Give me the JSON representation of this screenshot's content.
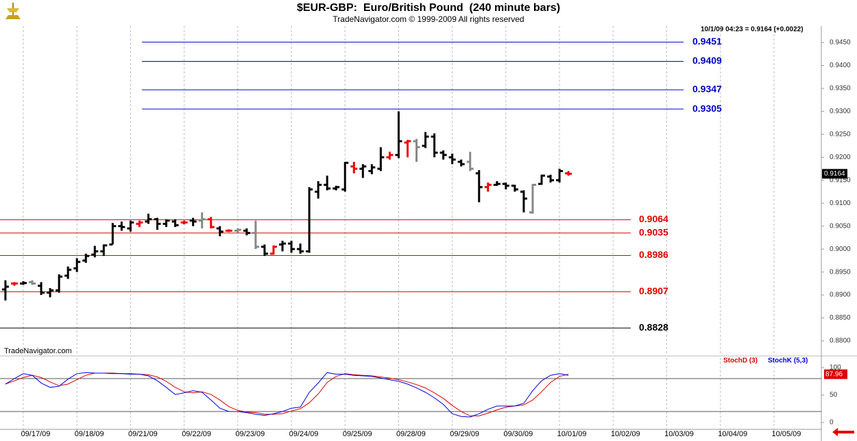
{
  "chart_data": [
    {
      "type": "ohlc",
      "title": "$EUR-GBP:  Euro/British Pound  (240 minute bars)",
      "subtitle": "TradeNavigator.com © 1999-2009 All rights reserved",
      "info": "10/1/09 04:23 = 0.9164 (+0.0022)",
      "watermark": "TradeNavigator.com",
      "xlim": [
        -10.43,
        357.2
      ],
      "xticks": [
        {
          "value": 0,
          "label": "09/17/09"
        },
        {
          "value": 24,
          "label": "09/18/09"
        },
        {
          "value": 48,
          "label": "09/21/09"
        },
        {
          "value": 72,
          "label": "09/22/09"
        },
        {
          "value": 96,
          "label": "09/23/09"
        },
        {
          "value": 120,
          "label": "09/24/09"
        },
        {
          "value": 144,
          "label": "09/25/09"
        },
        {
          "value": 168,
          "label": "09/28/09"
        },
        {
          "value": 192,
          "label": "09/29/09"
        },
        {
          "value": 216,
          "label": "09/30/09"
        },
        {
          "value": 240,
          "label": "10/01/09"
        },
        {
          "value": 264,
          "label": "10/02/09"
        },
        {
          "value": 288,
          "label": "10/03/09"
        },
        {
          "value": 312,
          "label": "10/04/09"
        },
        {
          "value": 336,
          "label": "10/05/09"
        }
      ],
      "ylim": [
        0.87701,
        0.94859
      ],
      "yticks": [
        {
          "value": 0.945,
          "label": "0.9450"
        },
        {
          "value": 0.94,
          "label": "0.9400"
        },
        {
          "value": 0.935,
          "label": "0.9350"
        },
        {
          "value": 0.93,
          "label": "0.9300"
        },
        {
          "value": 0.925,
          "label": "0.9250"
        },
        {
          "value": 0.92,
          "label": "0.9200"
        },
        {
          "value": 0.915,
          "label": "0.9150"
        },
        {
          "value": 0.91,
          "label": "0.9100"
        },
        {
          "value": 0.905,
          "label": "0.9050"
        },
        {
          "value": 0.9,
          "label": "0.9000"
        },
        {
          "value": 0.895,
          "label": "0.8950"
        },
        {
          "value": 0.89,
          "label": "0.8900"
        },
        {
          "value": 0.885,
          "label": "0.8850"
        },
        {
          "value": 0.88,
          "label": "0.8800"
        }
      ],
      "x": [
        -8,
        -4,
        0,
        4,
        8,
        12,
        16,
        20,
        24,
        28,
        32,
        36,
        40,
        44,
        48,
        52,
        56,
        60,
        64,
        68,
        72,
        76,
        80,
        84,
        88,
        92,
        96,
        100,
        104,
        108,
        112,
        116,
        120,
        124,
        128,
        132,
        136,
        140,
        144,
        148,
        152,
        156,
        160,
        164,
        168,
        172,
        176,
        180,
        184,
        188,
        192,
        196,
        200,
        204,
        208,
        212,
        216,
        220,
        224,
        228,
        232,
        236,
        240,
        244
      ],
      "open": [
        0.8912,
        0.8925,
        0.8925,
        0.8928,
        0.892,
        0.8905,
        0.891,
        0.8942,
        0.8958,
        0.8975,
        0.8988,
        0.8995,
        0.901,
        0.905,
        0.9045,
        0.9055,
        0.906,
        0.9065,
        0.9055,
        0.906,
        0.9058,
        0.9062,
        0.9062,
        0.9065,
        0.9045,
        0.904,
        0.904,
        0.904,
        0.9035,
        0.9005,
        0.899,
        0.901,
        0.9012,
        0.9,
        0.8995,
        0.9125,
        0.914,
        0.9132,
        0.913,
        0.918,
        0.9175,
        0.917,
        0.9175,
        0.92,
        0.9205,
        0.9232,
        0.9235,
        0.9225,
        0.9245,
        0.921,
        0.92,
        0.919,
        0.919,
        0.9165,
        0.9135,
        0.914,
        0.9142,
        0.9138,
        0.9125,
        0.908,
        0.9142,
        0.9158,
        0.915,
        0.9165
      ],
      "high": [
        0.8932,
        0.8928,
        0.893,
        0.8932,
        0.8928,
        0.8915,
        0.8945,
        0.8962,
        0.898,
        0.899,
        0.9007,
        0.901,
        0.9057,
        0.906,
        0.9062,
        0.9062,
        0.9077,
        0.9068,
        0.9065,
        0.9065,
        0.9062,
        0.9068,
        0.908,
        0.907,
        0.905,
        0.9043,
        0.9045,
        0.9045,
        0.9062,
        0.901,
        0.9008,
        0.9018,
        0.9018,
        0.9012,
        0.9135,
        0.9148,
        0.916,
        0.9138,
        0.919,
        0.919,
        0.9185,
        0.9185,
        0.9222,
        0.9212,
        0.93,
        0.9238,
        0.924,
        0.9255,
        0.9252,
        0.9215,
        0.9208,
        0.9195,
        0.9212,
        0.9172,
        0.9145,
        0.9148,
        0.9145,
        0.914,
        0.9128,
        0.9142,
        0.9162,
        0.9162,
        0.9175,
        0.917
      ],
      "low": [
        0.8888,
        0.892,
        0.8922,
        0.8922,
        0.89,
        0.8895,
        0.8905,
        0.8935,
        0.895,
        0.897,
        0.8982,
        0.8985,
        0.901,
        0.904,
        0.9038,
        0.9048,
        0.9055,
        0.9042,
        0.9048,
        0.9048,
        0.9054,
        0.905,
        0.9045,
        0.9045,
        0.9028,
        0.9037,
        0.9035,
        0.903,
        0.9,
        0.8985,
        0.8988,
        0.8995,
        0.8992,
        0.899,
        0.8992,
        0.911,
        0.9128,
        0.9128,
        0.9125,
        0.9165,
        0.9155,
        0.9163,
        0.917,
        0.9195,
        0.9198,
        0.92,
        0.919,
        0.922,
        0.92,
        0.9195,
        0.9185,
        0.918,
        0.917,
        0.9102,
        0.9125,
        0.9138,
        0.913,
        0.9125,
        0.908,
        0.9077,
        0.914,
        0.9145,
        0.9145,
        0.916
      ],
      "close": [
        0.8918,
        0.8925,
        0.8926,
        0.8925,
        0.8905,
        0.891,
        0.894,
        0.8955,
        0.8972,
        0.8985,
        0.8995,
        0.9008,
        0.905,
        0.9048,
        0.9058,
        0.9058,
        0.9065,
        0.9055,
        0.9062,
        0.9052,
        0.9058,
        0.906,
        0.9065,
        0.9048,
        0.9038,
        0.904,
        0.9042,
        0.9035,
        0.9005,
        0.899,
        0.9005,
        0.9012,
        0.9,
        0.8995,
        0.913,
        0.914,
        0.9132,
        0.9135,
        0.9188,
        0.9175,
        0.918,
        0.9178,
        0.92,
        0.9205,
        0.9235,
        0.9235,
        0.9222,
        0.9245,
        0.921,
        0.9205,
        0.9195,
        0.9185,
        0.9175,
        0.9135,
        0.914,
        0.9142,
        0.9138,
        0.913,
        0.911,
        0.914,
        0.916,
        0.915,
        0.917,
        0.9164
      ],
      "colors": [
        "#000",
        "#e00",
        "#000",
        "#888",
        "#000",
        "#000",
        "#000",
        "#000",
        "#000",
        "#000",
        "#000",
        "#000",
        "#000",
        "#000",
        "#000",
        "#e00",
        "#000",
        "#000",
        "#000",
        "#000",
        "#e00",
        "#000",
        "#888",
        "#e00",
        "#000",
        "#e00",
        "#888",
        "#000",
        "#888",
        "#000",
        "#e00",
        "#000",
        "#000",
        "#000",
        "#000",
        "#000",
        "#000",
        "#000",
        "#000",
        "#e00",
        "#000",
        "#000",
        "#000",
        "#e00",
        "#000",
        "#e00",
        "#888",
        "#000",
        "#000",
        "#000",
        "#000",
        "#000",
        "#888",
        "#000",
        "#e00",
        "#000",
        "#000",
        "#000",
        "#000",
        "#888",
        "#000",
        "#000",
        "#000",
        "#e00"
      ],
      "last_value": 0.9164,
      "projection_levels": [
        {
          "value": 0.9451,
          "color": "#0000cc"
        },
        {
          "value": 0.9409,
          "color": "#0000cc"
        },
        {
          "value": 0.9347,
          "color": "#0000cc"
        },
        {
          "value": 0.9305,
          "color": "#0000cc"
        }
      ],
      "support_levels": [
        {
          "value": 0.9064,
          "color": "#dd0000"
        },
        {
          "value": 0.9035,
          "color": "#dd0000"
        },
        {
          "value": 0.8986,
          "color": "#dd0000"
        },
        {
          "value": 0.8907,
          "color": "#dd0000"
        },
        {
          "value": 0.8828,
          "color": "#000000"
        }
      ]
    },
    {
      "type": "line",
      "ylim": [
        -11.25,
        117.5
      ],
      "yticks": [
        0,
        50,
        100
      ],
      "ref_lines": [
        20,
        80
      ],
      "last_value": 87.96,
      "series": [
        {
          "name": "StochD (3)",
          "color": "#dd0000",
          "values": [
            70,
            76,
            82,
            86,
            82,
            74,
            67,
            70,
            78,
            86,
            90,
            90,
            90,
            89,
            89,
            88,
            87,
            83,
            75,
            64,
            56,
            54,
            56,
            51,
            41,
            29,
            22,
            19,
            18,
            15,
            15,
            16,
            21,
            25,
            36,
            52,
            73,
            84,
            89,
            87,
            86,
            85,
            83,
            81,
            78,
            74,
            69,
            63,
            54,
            44,
            31,
            20,
            12,
            12,
            17,
            23,
            28,
            30,
            32,
            41,
            56,
            73,
            84,
            88
          ]
        },
        {
          "name": "StochK (5,3)",
          "color": "#0000dd",
          "values": [
            70,
            80,
            89,
            86,
            72,
            64,
            66,
            79,
            89,
            91,
            90,
            90,
            89,
            89,
            88,
            88,
            85,
            76,
            64,
            51,
            54,
            58,
            55,
            41,
            26,
            20,
            20,
            18,
            15,
            13,
            16,
            20,
            26,
            28,
            55,
            72,
            91,
            88,
            88,
            86,
            85,
            84,
            81,
            78,
            75,
            70,
            63,
            55,
            45,
            33,
            16,
            11,
            10,
            16,
            24,
            30,
            30,
            30,
            35,
            58,
            76,
            86,
            89,
            86
          ]
        }
      ]
    }
  ]
}
